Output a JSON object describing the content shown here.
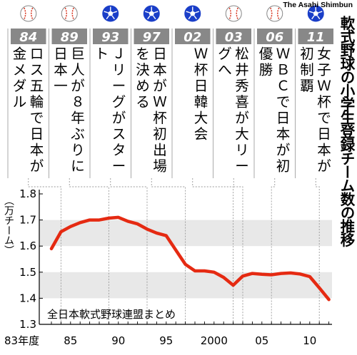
{
  "title": "軟式野球の小学生登録チーム数の推移",
  "credit": "The Asahi Shimbun",
  "source_note": "全日本軟式野球連盟まとめ",
  "colors": {
    "line": "#e52a12",
    "band": "#e8e8e8",
    "year_box": "#888888",
    "soccer": "#1a3ec8",
    "baseball_stitch": "#d8321c"
  },
  "events": [
    {
      "year_label": "84",
      "icon": "baseball-icon",
      "text": "ロス五輪で日本が金メダル"
    },
    {
      "year_label": "89",
      "icon": "baseball-icon",
      "text": "巨人が８年ぶりに日本一"
    },
    {
      "year_label": "93",
      "icon": "soccer-ball-icon",
      "text": "Ｊリーグがスタート"
    },
    {
      "year_label": "97",
      "icon": "soccer-ball-icon",
      "text": "日本がＷ杯初出場を決める"
    },
    {
      "year_label": "02",
      "icon": "soccer-ball-icon",
      "text": "Ｗ杯日韓大会"
    },
    {
      "year_label": "03",
      "icon": "baseball-icon",
      "text": "松井秀喜が大リーグへ"
    },
    {
      "year_label": "06",
      "icon": "baseball-icon",
      "text": "ＷＢＣで日本が初優勝"
    },
    {
      "year_label": "11",
      "icon": "soccer-ball-icon",
      "text": "女子Ｗ杯で日本が初制覇"
    }
  ],
  "chart_data": {
    "type": "line",
    "title": "軟式野球の小学生登録チーム数の推移",
    "ylabel": "（万チーム）",
    "xlabel": "",
    "ylim": [
      1.3,
      1.8
    ],
    "xlim": [
      1983,
      2012
    ],
    "yticks": [
      "1.8",
      "1.7",
      "1.6",
      "1.5",
      "1.4",
      "1.3"
    ],
    "xtick_labels": [
      {
        "year": 1983,
        "label": "83年度"
      },
      {
        "year": 1985,
        "label": "85"
      },
      {
        "year": 1990,
        "label": "90"
      },
      {
        "year": 1995,
        "label": "95"
      },
      {
        "year": 2000,
        "label": "2000"
      },
      {
        "year": 2005,
        "label": "05"
      },
      {
        "year": 2010,
        "label": "10"
      }
    ],
    "x": [
      1983,
      1984,
      1985,
      1986,
      1987,
      1988,
      1989,
      1990,
      1991,
      1992,
      1993,
      1994,
      1995,
      1996,
      1997,
      1998,
      1999,
      2000,
      2001,
      2002,
      2003,
      2004,
      2005,
      2006,
      2007,
      2008,
      2009,
      2010,
      2011,
      2012
    ],
    "series": [
      {
        "values": [
          1.59,
          1.655,
          1.675,
          1.69,
          1.7,
          1.7,
          1.707,
          1.71,
          1.695,
          1.685,
          1.665,
          1.65,
          1.64,
          1.585,
          1.53,
          1.505,
          1.505,
          1.5,
          1.48,
          1.45,
          1.485,
          1.495,
          1.492,
          1.49,
          1.495,
          1.497,
          1.493,
          1.483,
          1.44,
          1.395
        ]
      }
    ],
    "grid": "horizontal bands",
    "legend": "none"
  }
}
